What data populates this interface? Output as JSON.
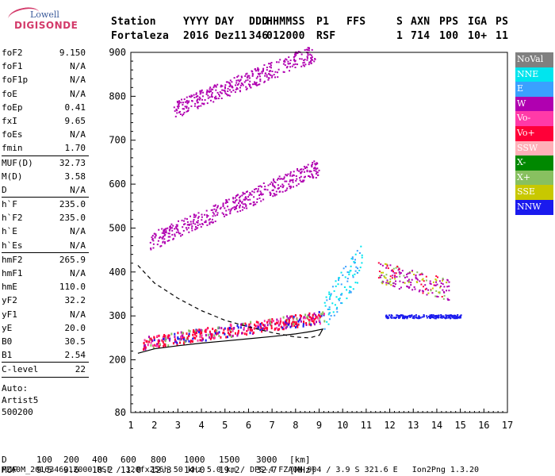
{
  "logo": {
    "line1": "Lowell",
    "line2": "DIGISONDE"
  },
  "header": {
    "row1": [
      "Station",
      "YYYY",
      "DAY",
      "DDD",
      "HHMMSS",
      "P1",
      "FFS",
      "S",
      "AXN",
      "PPS",
      "IGA",
      "PS"
    ],
    "row2": [
      "Fortaleza",
      "2016",
      "Dez11",
      "346",
      "012000",
      "RSF",
      "",
      "1",
      "714",
      "100",
      "10+",
      "11"
    ]
  },
  "params": {
    "groups": [
      [
        [
          "foF2",
          "9.150"
        ],
        [
          "foF1",
          "N/A"
        ],
        [
          "foF1p",
          "N/A"
        ],
        [
          "foE",
          "N/A"
        ],
        [
          "foEp",
          "0.41"
        ],
        [
          "fxI",
          "9.65"
        ],
        [
          "foEs",
          "N/A"
        ],
        [
          "fmin",
          "1.70"
        ]
      ],
      [
        [
          "MUF(D)",
          "32.73"
        ],
        [
          "M(D)",
          "3.58"
        ],
        [
          "D",
          "N/A"
        ]
      ],
      [
        [
          "h`F",
          "235.0"
        ],
        [
          "h`F2",
          "235.0"
        ],
        [
          "h`E",
          "N/A"
        ],
        [
          "h`Es",
          "N/A"
        ]
      ],
      [
        [
          "hmF2",
          "265.9"
        ],
        [
          "hmF1",
          "N/A"
        ],
        [
          "hmE",
          "110.0"
        ],
        [
          "yF2",
          "32.2"
        ],
        [
          "yF1",
          "N/A"
        ],
        [
          "yE",
          "20.0"
        ],
        [
          "B0",
          "30.5"
        ],
        [
          "B1",
          "2.54"
        ]
      ],
      [
        [
          "C-level",
          "22"
        ]
      ]
    ],
    "notes": [
      "Auto:",
      "Artist5",
      "500200"
    ]
  },
  "legend": [
    {
      "label": "NoVal",
      "color": "#808080"
    },
    {
      "label": "NNE",
      "color": "#00e5ee"
    },
    {
      "label": "E",
      "color": "#3aa0ff"
    },
    {
      "label": "W",
      "color": "#b000b0"
    },
    {
      "label": "Vo-",
      "color": "#ff3aa8"
    },
    {
      "label": "Vo+",
      "color": "#ff0038"
    },
    {
      "label": "SSW",
      "color": "#ffb0b8"
    },
    {
      "label": "X-",
      "color": "#008800"
    },
    {
      "label": "X+",
      "color": "#88c060"
    },
    {
      "label": "SSE",
      "color": "#c8c800"
    },
    {
      "label": "NNW",
      "color": "#1a1aee"
    }
  ],
  "chart_data": {
    "type": "scatter",
    "xlim": [
      1,
      17
    ],
    "ylim": [
      80,
      900
    ],
    "x_ticks": [
      1,
      2,
      3,
      4,
      5,
      6,
      7,
      8,
      9,
      10,
      11,
      12,
      13,
      14,
      15,
      16,
      17
    ],
    "y_ticks": [
      80,
      200,
      300,
      400,
      500,
      600,
      700,
      800,
      900
    ],
    "traces": [
      {
        "name": "O-trace 1st hop",
        "series": "Vo+",
        "x_range": [
          1.5,
          9.2
        ],
        "h_start": 240,
        "h_end": 300,
        "thickness": 28
      },
      {
        "name": "spread F",
        "series": "NNE",
        "x_range": [
          9.2,
          10.8
        ],
        "h_start": 310,
        "h_end": 430,
        "thickness": 80
      },
      {
        "name": "2nd hop",
        "series": "W",
        "x_range": [
          1.8,
          9.0
        ],
        "h_start": 470,
        "h_end": 640,
        "thickness": 40
      },
      {
        "name": "3rd hop",
        "series": "W",
        "x_range": [
          2.8,
          8.8
        ],
        "h_start": 770,
        "h_end": 900,
        "thickness": 40
      },
      {
        "name": "oblique",
        "series": "W",
        "x_range": [
          11.5,
          14.5
        ],
        "h_start": 400,
        "h_end": 360,
        "thickness": 50
      },
      {
        "name": "low oblique",
        "series": "NNW",
        "x_range": [
          11.8,
          15.0
        ],
        "h_start": 300,
        "h_end": 300,
        "thickness": 8
      }
    ],
    "profile_solid": [
      [
        1.3,
        215
      ],
      [
        2,
        225
      ],
      [
        3,
        232
      ],
      [
        4,
        238
      ],
      [
        5,
        243
      ],
      [
        6,
        248
      ],
      [
        7,
        253
      ],
      [
        8,
        259
      ],
      [
        8.7,
        265
      ],
      [
        9.15,
        270
      ],
      [
        9.0,
        255
      ]
    ],
    "profile_dashed": [
      [
        1.3,
        415
      ],
      [
        2,
        375
      ],
      [
        3,
        340
      ],
      [
        4,
        312
      ],
      [
        5,
        290
      ],
      [
        6,
        275
      ],
      [
        7,
        262
      ],
      [
        8,
        252
      ],
      [
        8.6,
        250
      ],
      [
        9.0,
        256
      ]
    ],
    "bottom_scale": {
      "d_label": "D",
      "d_values": [
        "100",
        "200",
        "400",
        "600",
        "800",
        "1000",
        "1500",
        "3000"
      ],
      "d_unit": "[km]",
      "muf_label": "MUF",
      "muf_values": [
        "9.5",
        "9.6",
        "10.2",
        "11.0",
        "12.3",
        "14.0",
        "19.2",
        "32.7"
      ],
      "muf_unit": "[MHz]"
    }
  },
  "footer": "FZA0M_2016346012000.RSF / 320fx256h 50 kHz 5.0 km / DPS-4 FZA0M 904 / 3.9 S 321.6 E   Ion2Png 1.3.20"
}
